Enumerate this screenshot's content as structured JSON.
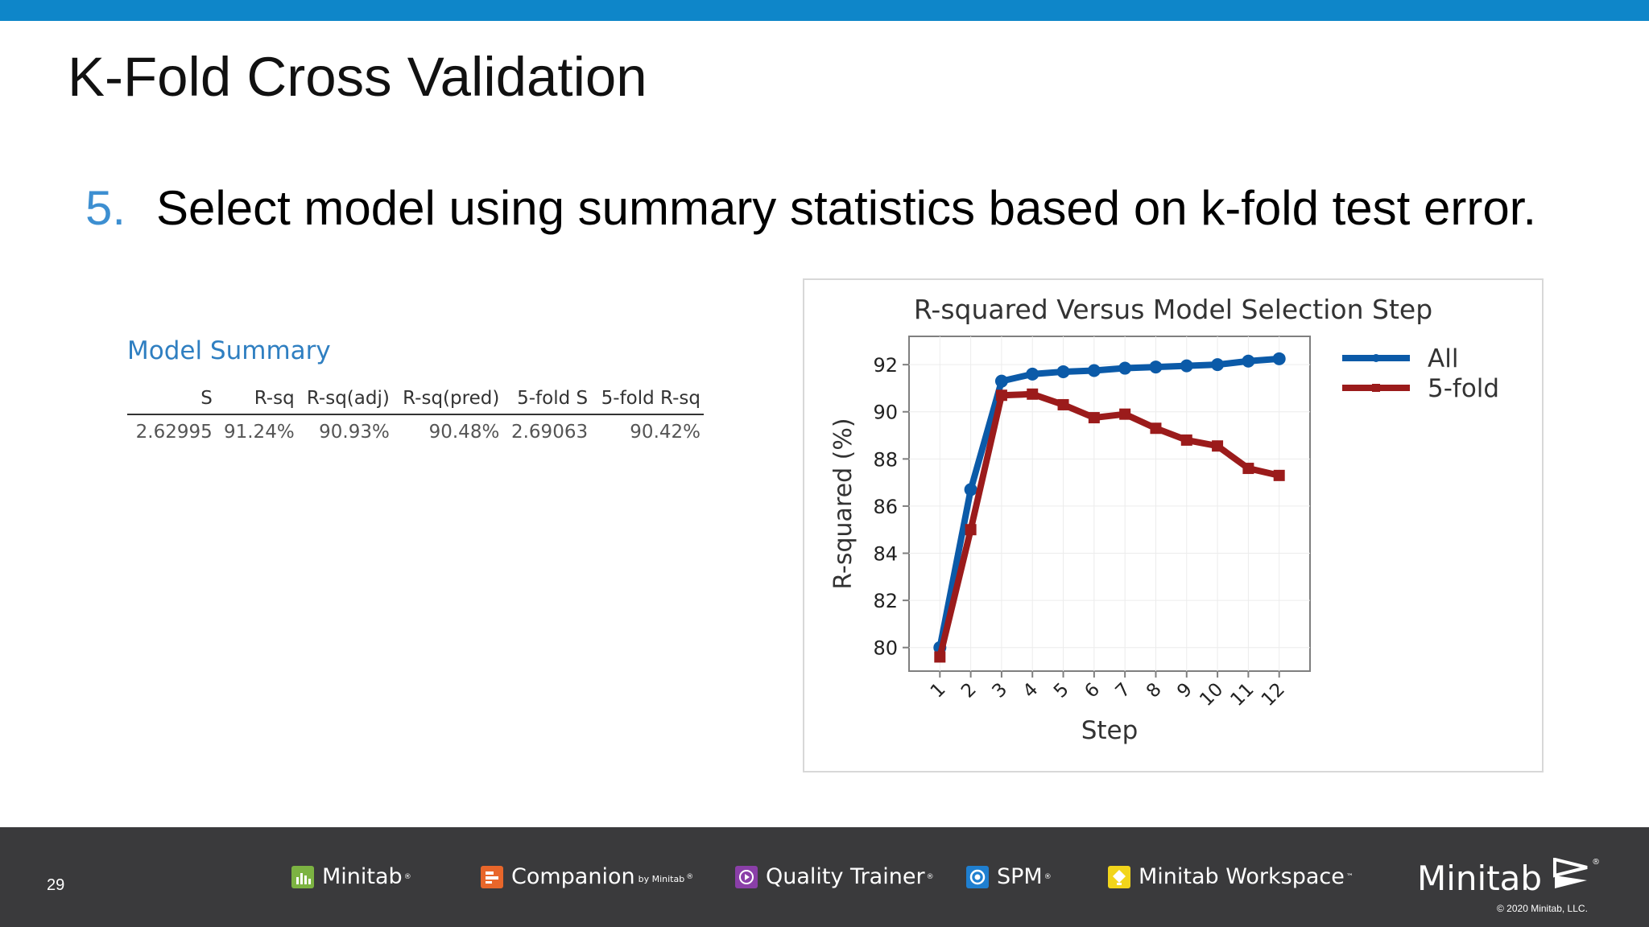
{
  "slide": {
    "title": "K-Fold Cross Validation",
    "step_number": "5.",
    "step_text": "Select model using summary statistics based on k-fold test error."
  },
  "model_summary": {
    "title": "Model Summary",
    "columns": [
      "S",
      "R-sq",
      "R-sq(adj)",
      "R-sq(pred)",
      "5-fold S",
      "5-fold R-sq"
    ],
    "rows": [
      [
        "2.62995",
        "91.24%",
        "90.93%",
        "90.48%",
        "2.69063",
        "90.42%"
      ]
    ]
  },
  "chart_data": {
    "type": "line",
    "title": "R-squared Versus Model Selection Step",
    "xlabel": "Step",
    "ylabel": "R-squared (%)",
    "x": [
      1,
      2,
      3,
      4,
      5,
      6,
      7,
      8,
      9,
      10,
      11,
      12
    ],
    "ylim": [
      79,
      93.2
    ],
    "yticks": [
      80,
      82,
      84,
      86,
      88,
      90,
      92
    ],
    "grid": true,
    "legend_position": "right",
    "series": [
      {
        "name": "All",
        "color": "#0b5aa8",
        "marker": "circle",
        "values": [
          80.0,
          86.7,
          91.3,
          91.6,
          91.7,
          91.75,
          91.85,
          91.9,
          91.95,
          92.0,
          92.15,
          92.25
        ]
      },
      {
        "name": "5-fold",
        "color": "#9b1b1b",
        "marker": "square",
        "values": [
          79.6,
          85.0,
          90.7,
          90.75,
          90.3,
          89.75,
          89.9,
          89.3,
          88.8,
          88.55,
          87.6,
          87.3
        ]
      }
    ]
  },
  "footer": {
    "page_number": "29",
    "products": [
      {
        "name": "Minitab",
        "mark": "®",
        "byline": "",
        "color": "#7cb342",
        "icon": "minitab-bar-chart-icon"
      },
      {
        "name": "Companion",
        "mark": "®",
        "byline": "by Minitab",
        "color": "#e8662a",
        "icon": "companion-icon"
      },
      {
        "name": "Quality Trainer",
        "mark": "®",
        "byline": "",
        "color": "#8a3fa8",
        "icon": "quality-trainer-play-icon"
      },
      {
        "name": "SPM",
        "mark": "®",
        "byline": "",
        "color": "#1f7fd0",
        "icon": "spm-swirl-icon"
      },
      {
        "name": "Minitab Workspace",
        "mark": "™",
        "byline": "",
        "color": "#f2d51b",
        "icon": "workspace-bulb-icon"
      }
    ],
    "brand": "Minitab",
    "brand_mark": "®",
    "copyright": "© 2020 Minitab, LLC."
  }
}
